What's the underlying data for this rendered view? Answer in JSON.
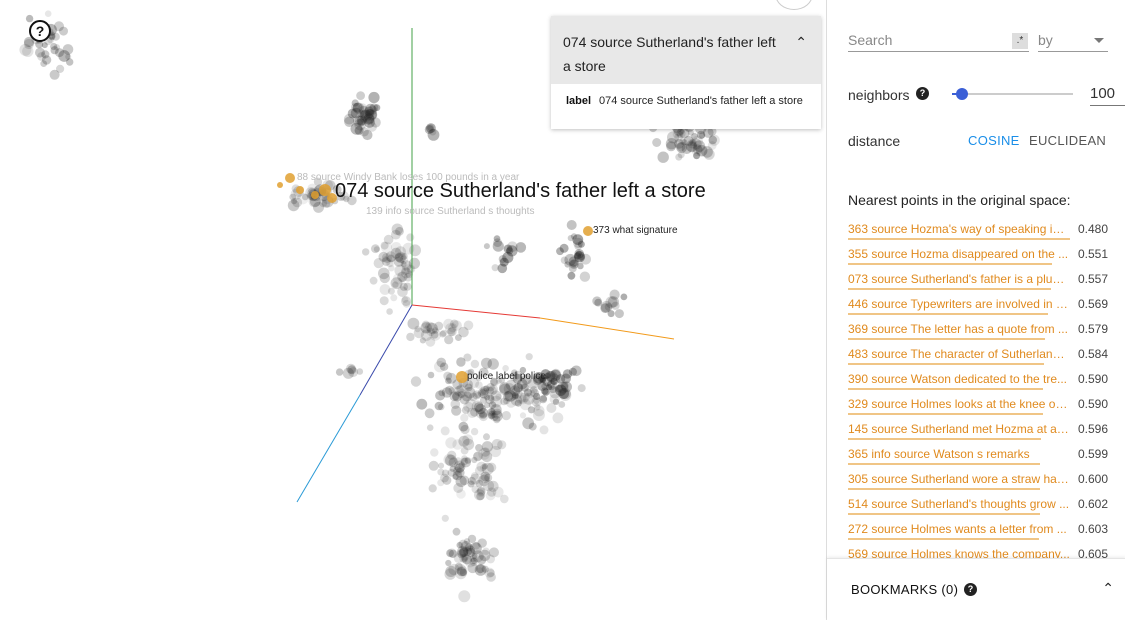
{
  "canvas": {
    "help_glyph": "?",
    "selected_label": "074 source Sutherland's father left a store",
    "point_labels": [
      {
        "text": "373 what signature"
      },
      {
        "text": "police label police"
      }
    ],
    "ghost_labels": [
      {
        "text": "88 source Windy Bank loses 100 pounds in a year"
      },
      {
        "text": "139 info source Sutherland s thoughts"
      }
    ]
  },
  "inspector": {
    "title": "074 source Sutherland's father left a store",
    "collapse_icon": "chevron-up-icon",
    "collapse_glyph": "⌃",
    "field_key": "label",
    "field_value": "074 source Sutherland's father left a store"
  },
  "panel": {
    "search": {
      "placeholder": "Search",
      "value": "",
      "regex_label": ".*",
      "by_label": "by"
    },
    "neighbors": {
      "label": "neighbors",
      "help_glyph": "?",
      "value": "100",
      "slider_fraction": 0.08
    },
    "distance": {
      "label": "distance",
      "cosine": "COSINE",
      "euclidean": "EUCLIDEAN",
      "selected": "COSINE"
    },
    "nn_title": "Nearest points in the original space:",
    "nn_items": [
      {
        "label": "363 source Hozma's way of speaking is ...",
        "value": "0.480"
      },
      {
        "label": "355 source Hozma disappeared on the ...",
        "value": "0.551"
      },
      {
        "label": "073 source Sutherland's father is a plum...",
        "value": "0.557"
      },
      {
        "label": "446 source Typewriters are involved in c...",
        "value": "0.569"
      },
      {
        "label": "369 source The letter has a quote from ...",
        "value": "0.579"
      },
      {
        "label": "483 source The character of Sutherland ...",
        "value": "0.584"
      },
      {
        "label": "390 source Watson dedicated to the tre...",
        "value": "0.590"
      },
      {
        "label": "329 source Holmes looks at the knee of ...",
        "value": "0.590"
      },
      {
        "label": "145 source Sutherland met Hozma at a ...",
        "value": "0.596"
      },
      {
        "label": "365 info source Watson s remarks",
        "value": "0.599"
      },
      {
        "label": "305 source Sutherland wore a straw hat ...",
        "value": "0.600"
      },
      {
        "label": "514 source Sutherland's thoughts grow ...",
        "value": "0.602"
      },
      {
        "label": "272 source Holmes wants a letter from ...",
        "value": "0.603"
      },
      {
        "label": "569 source Holmes knows the company...",
        "value": "0.605"
      }
    ],
    "bookmarks": {
      "label": "BOOKMARKS (0)",
      "help_glyph": "?",
      "expand_glyph": "⌃"
    }
  },
  "colors": {
    "accent": "#1a8ee8",
    "highlight": "#e08a1e",
    "slider": "#3b5fd6",
    "axis_x": "#e53935",
    "axis_y": "#43a047",
    "axis_z": "#3949ab"
  }
}
